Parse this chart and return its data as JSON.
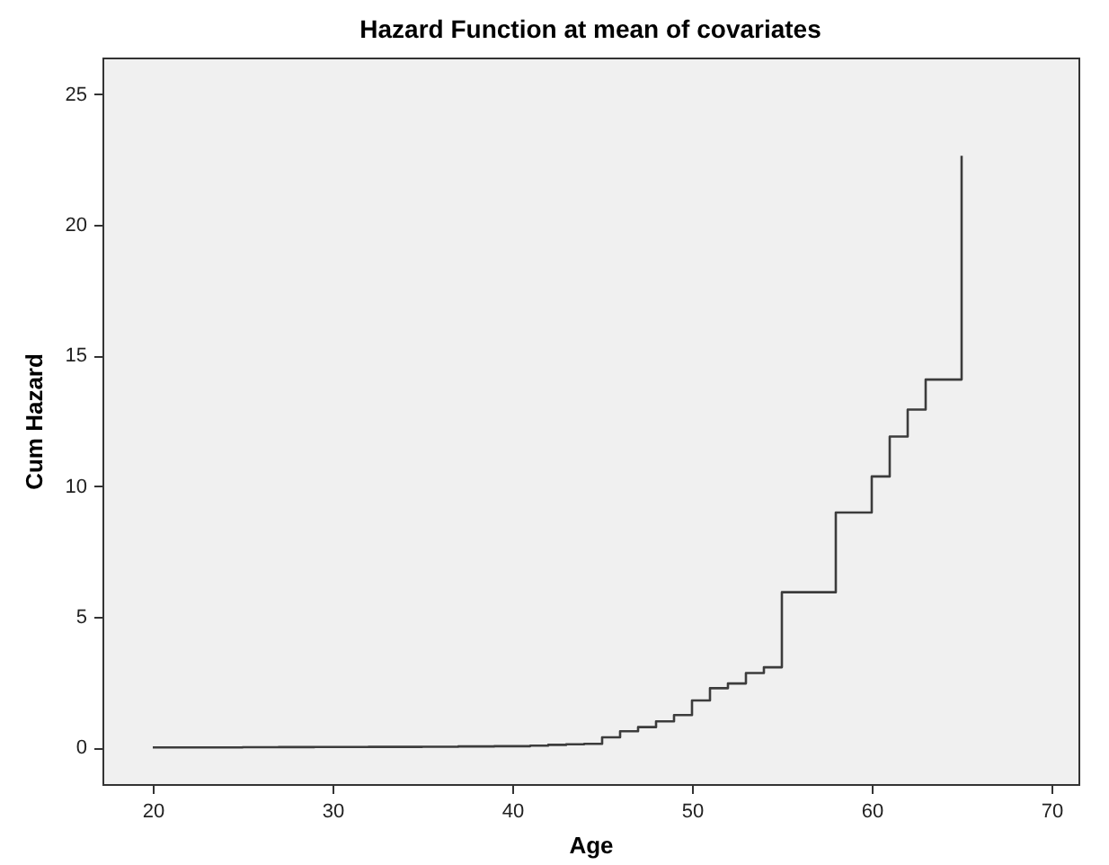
{
  "chart_data": {
    "type": "step",
    "title": "Hazard Function at mean of covariates",
    "xlabel": "Age",
    "ylabel": "Cum Hazard",
    "x": [
      20,
      25,
      27,
      29,
      32,
      35,
      37,
      39,
      41,
      42,
      43,
      44,
      45,
      46,
      47,
      48,
      49,
      50,
      51,
      52,
      53,
      54,
      55,
      58,
      60,
      61,
      62,
      63,
      65,
      65
    ],
    "series": [
      {
        "color": "#3c3c3c",
        "values": [
          0,
          0.01,
          0.015,
          0.02,
          0.025,
          0.03,
          0.04,
          0.05,
          0.07,
          0.1,
          0.12,
          0.14,
          0.39,
          0.62,
          0.78,
          1.0,
          1.24,
          1.8,
          2.27,
          2.45,
          2.85,
          3.07,
          5.94,
          8.99,
          10.37,
          11.9,
          12.93,
          14.08,
          14.08,
          22.64
        ]
      }
    ],
    "xlim": [
      17.2,
      71.5
    ],
    "xticks": [
      20,
      30,
      40,
      50,
      60,
      70
    ],
    "ylim": [
      -1.4,
      26.4
    ],
    "yticks": [
      0,
      5,
      10,
      15,
      20,
      25
    ],
    "grid": false,
    "marker": "none",
    "line_style": "solid"
  }
}
